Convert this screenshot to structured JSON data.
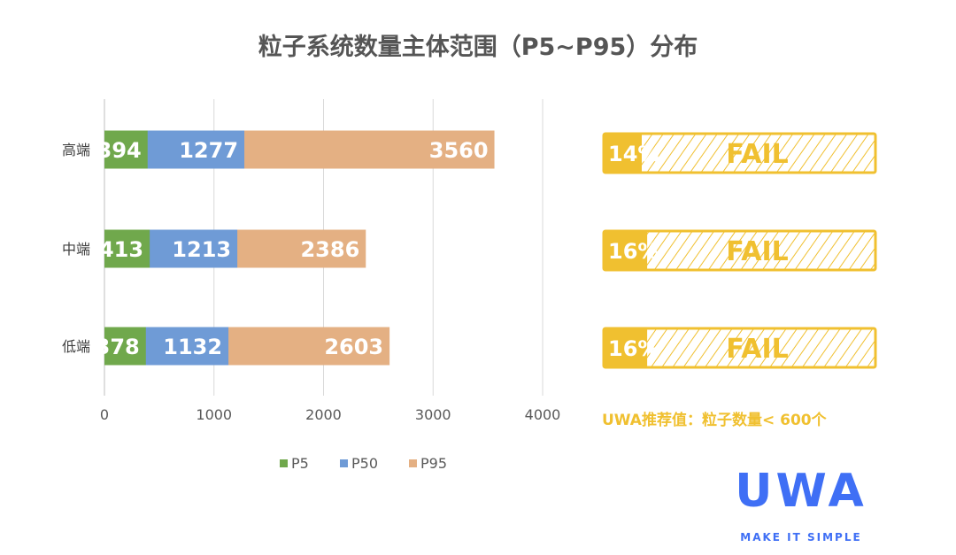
{
  "chart_data": {
    "type": "bar",
    "orientation": "horizontal",
    "layout": "overlapping",
    "title": "粒子系统数量主体范围（P5~P95）分布",
    "categories": [
      "高端",
      "中端",
      "低端"
    ],
    "series": [
      {
        "name": "P5",
        "values": [
          394,
          413,
          378
        ],
        "color": "#70a84c"
      },
      {
        "name": "P50",
        "values": [
          1277,
          1213,
          1132
        ],
        "color": "#6f9bd6"
      },
      {
        "name": "P95",
        "values": [
          3560,
          2386,
          2603
        ],
        "color": "#e4b083"
      }
    ],
    "xlim": [
      0,
      4000
    ],
    "xticks": [
      "0",
      "1000",
      "2000",
      "3000",
      "4000"
    ],
    "grid": true,
    "legend_position": "bottom",
    "data_labels": true
  },
  "gauges": {
    "color": "#f0c030",
    "items": [
      {
        "percent": 14,
        "label": "14%",
        "status": "FAIL"
      },
      {
        "percent": 16,
        "label": "16%",
        "status": "FAIL"
      },
      {
        "percent": 16,
        "label": "16%",
        "status": "FAIL"
      }
    ]
  },
  "recommendation": "UWA推荐值：粒子数量< 600个",
  "logo": {
    "text": "UWA",
    "tagline": "MAKE IT SIMPLE",
    "color": "#3f6ff5"
  }
}
